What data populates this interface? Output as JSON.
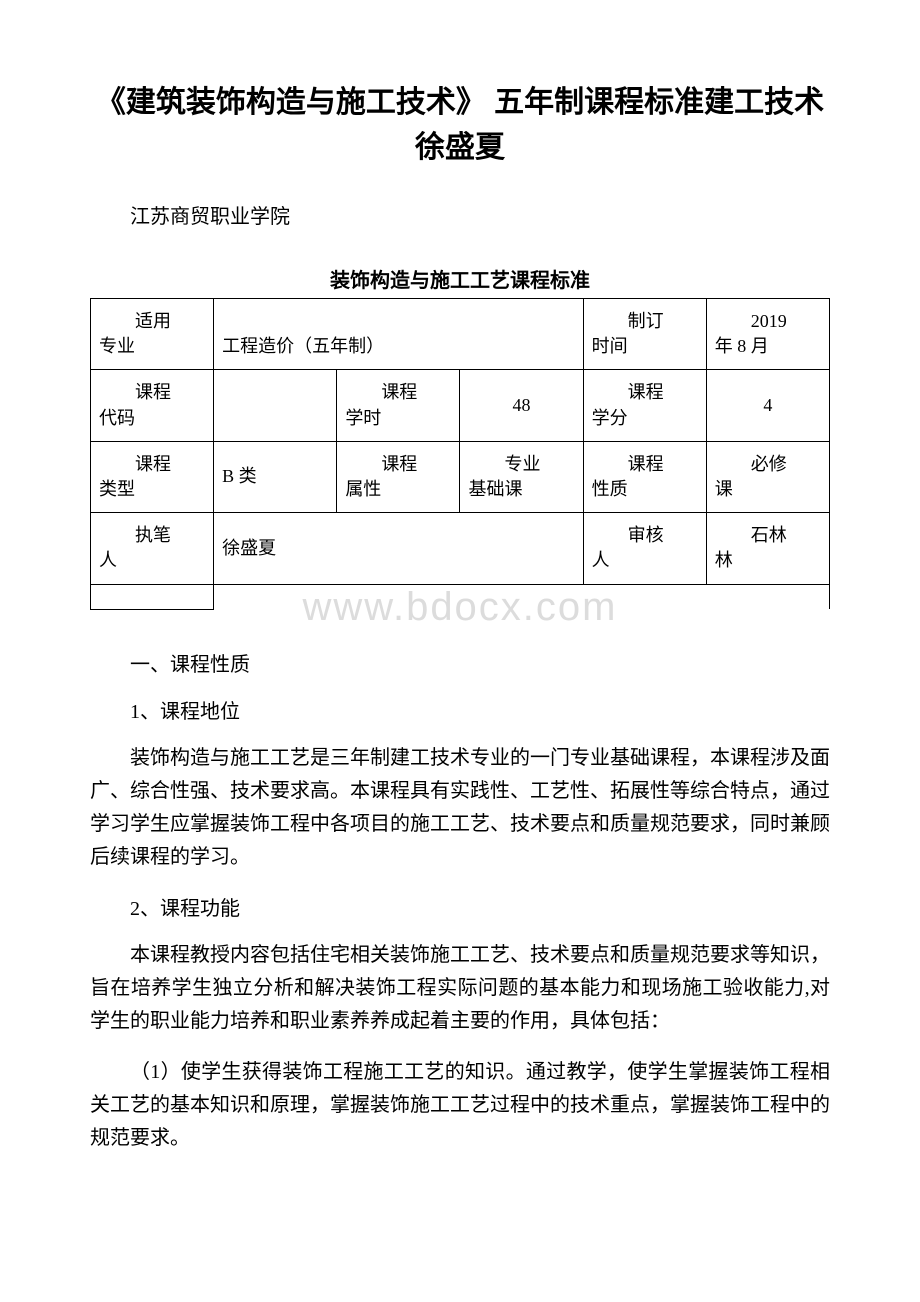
{
  "document": {
    "title": "《建筑装饰构造与施工技术》 五年制课程标准建工技术徐盛夏",
    "institution": "江苏商贸职业学院",
    "table_title": "装饰构造与施工工艺课程标准",
    "watermark": "www.bdocx.com"
  },
  "table": {
    "row1": {
      "c1_label": "适用",
      "c1_sub": "专业",
      "c2_value": "工程造价（五年制）",
      "c3_label": "制订",
      "c3_sub": "时间",
      "c4_value": "2019",
      "c4_sub": "年 8 月"
    },
    "row2": {
      "c1_label": "课程",
      "c1_sub": "代码",
      "c2_value": "",
      "c3_label": "课程",
      "c3_sub": "学时",
      "c4_value": "48",
      "c5_label": "课程",
      "c5_sub": "学分",
      "c6_value": "4"
    },
    "row3": {
      "c1_label": "课程",
      "c1_sub": "类型",
      "c2_value": "B 类",
      "c3_label": "课程",
      "c3_sub": "属性",
      "c4_value": "专业",
      "c4_sub": "基础课",
      "c5_label": "课程",
      "c5_sub": "性质",
      "c6_value": "必修",
      "c6_sub": "课"
    },
    "row4": {
      "c1_label": "执笔",
      "c1_sub": "人",
      "c2_value": "徐盛夏",
      "c3_label": "审核",
      "c3_sub": "人",
      "c4_value": "石林",
      "c4_sub": "林"
    }
  },
  "content": {
    "section1_heading": "一、课程性质",
    "sub1_heading": "1、课程地位",
    "para1": "装饰构造与施工工艺是三年制建工技术专业的一门专业基础课程，本课程涉及面广、综合性强、技术要求高。本课程具有实践性、工艺性、拓展性等综合特点，通过学习学生应掌握装饰工程中各项目的施工工艺、技术要点和质量规范要求，同时兼顾后续课程的学习。",
    "sub2_heading": "2、课程功能",
    "para2": "本课程教授内容包括住宅相关装饰施工工艺、技术要点和质量规范要求等知识，旨在培养学生独立分析和解决装饰工程实际问题的基本能力和现场施工验收能力,对学生的职业能力培养和职业素养养成起着主要的作用，具体包括：",
    "para3": "（1）使学生获得装饰工程施工工艺的知识。通过教学，使学生掌握装饰工程相关工艺的基本知识和原理，掌握装饰施工工艺过程中的技术重点，掌握装饰工程中的规范要求。"
  }
}
